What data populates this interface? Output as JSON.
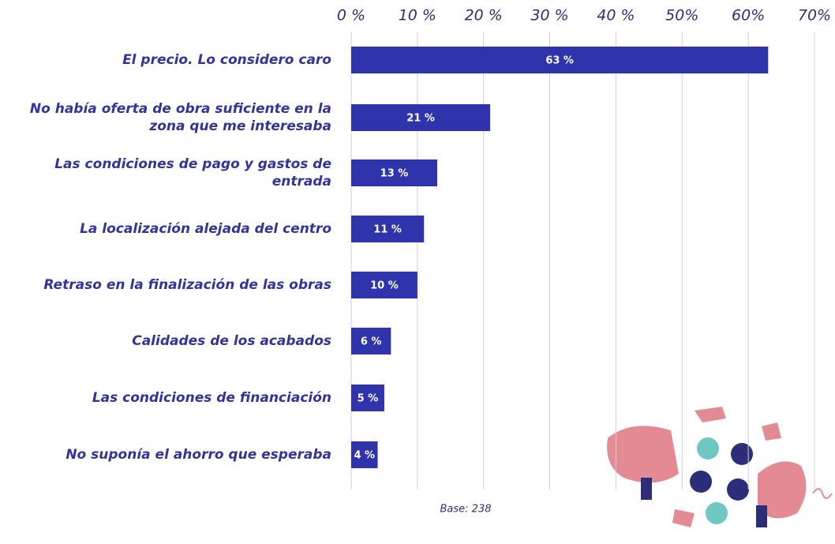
{
  "chart_data": {
    "type": "bar",
    "orientation": "horizontal",
    "categories": [
      "El precio. Lo considero caro",
      "No había oferta de obra suficiente en la zona que me interesaba",
      "Las condiciones de pago y gastos de entrada",
      "La localización alejada del centro",
      "Retraso en la finalización de las obras",
      "Calidades de los acabados",
      "Las condiciones de financiación",
      "No suponía el ahorro que esperaba"
    ],
    "values": [
      63,
      21,
      13,
      11,
      10,
      6,
      5,
      4
    ],
    "value_labels": [
      "63 %",
      "21 %",
      "13 %",
      "11 %",
      "10 %",
      "6 %",
      "5 %",
      "4 %"
    ],
    "color": "#3034ac",
    "xlim": [
      0,
      70
    ],
    "xticks": [
      {
        "value": 0,
        "label": "0 %"
      },
      {
        "value": 10,
        "label": "10 %"
      },
      {
        "value": 20,
        "label": "20 %"
      },
      {
        "value": 30,
        "label": "30 %"
      },
      {
        "value": 40,
        "label": "40 %"
      },
      {
        "value": 50,
        "label": "50%"
      },
      {
        "value": 60,
        "label": "60%"
      },
      {
        "value": 70,
        "label": "70%"
      }
    ],
    "grid": true,
    "annotation": "Base: 238"
  }
}
